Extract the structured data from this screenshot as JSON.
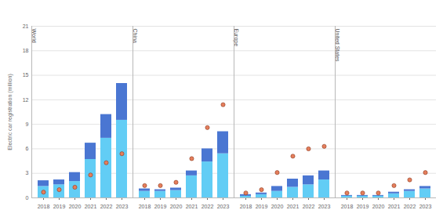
{
  "chart_data": {
    "type": "bar",
    "stacked": true,
    "grid": true,
    "ylabel": "Electric car registration (million)",
    "ylim": [
      0,
      21
    ],
    "yticks": [
      0,
      3,
      6,
      9,
      12,
      15,
      18,
      21
    ],
    "categories": [
      "2018",
      "2019",
      "2020",
      "2021",
      "2022",
      "2023"
    ],
    "panels": [
      {
        "title": "World",
        "series": [
          {
            "type": "bar",
            "color": "#62cdf5",
            "values": [
              1.4,
              1.6,
              2.0,
              4.7,
              7.3,
              9.5
            ]
          },
          {
            "type": "bar",
            "color": "#4a76d2",
            "values": [
              0.7,
              0.6,
              1.1,
              2.0,
              2.9,
              4.5
            ]
          },
          {
            "type": "scatter",
            "marker": "circle",
            "color": "#e57e5c",
            "values": [
              0.7,
              1.0,
              1.3,
              2.8,
              4.3,
              5.4
            ]
          }
        ]
      },
      {
        "title": "China",
        "series": [
          {
            "type": "bar",
            "color": "#62cdf5",
            "values": [
              0.8,
              0.8,
              0.9,
              2.7,
              4.4,
              5.4
            ]
          },
          {
            "type": "bar",
            "color": "#4a76d2",
            "values": [
              0.3,
              0.2,
              0.3,
              0.6,
              1.6,
              2.7
            ]
          },
          {
            "type": "scatter",
            "marker": "circle",
            "color": "#e57e5c",
            "values": [
              1.5,
              1.5,
              1.9,
              4.8,
              8.6,
              11.4
            ]
          }
        ]
      },
      {
        "title": "Europe",
        "series": [
          {
            "type": "bar",
            "color": "#62cdf5",
            "values": [
              0.2,
              0.4,
              0.8,
              1.3,
              1.6,
              2.2
            ]
          },
          {
            "type": "bar",
            "color": "#4a76d2",
            "values": [
              0.2,
              0.2,
              0.6,
              1.0,
              1.1,
              1.1
            ]
          },
          {
            "type": "scatter",
            "marker": "circle",
            "color": "#e57e5c",
            "values": [
              0.6,
              1.0,
              3.1,
              5.1,
              6.0,
              6.3
            ]
          }
        ]
      },
      {
        "title": "United States",
        "series": [
          {
            "type": "bar",
            "color": "#62cdf5",
            "values": [
              0.2,
              0.2,
              0.2,
              0.5,
              0.8,
              1.1
            ]
          },
          {
            "type": "bar",
            "color": "#4a76d2",
            "values": [
              0.1,
              0.1,
              0.1,
              0.2,
              0.2,
              0.3
            ]
          },
          {
            "type": "scatter",
            "marker": "circle",
            "color": "#e57e5c",
            "values": [
              0.6,
              0.6,
              0.6,
              1.5,
              2.2,
              3.1
            ]
          }
        ]
      }
    ]
  }
}
